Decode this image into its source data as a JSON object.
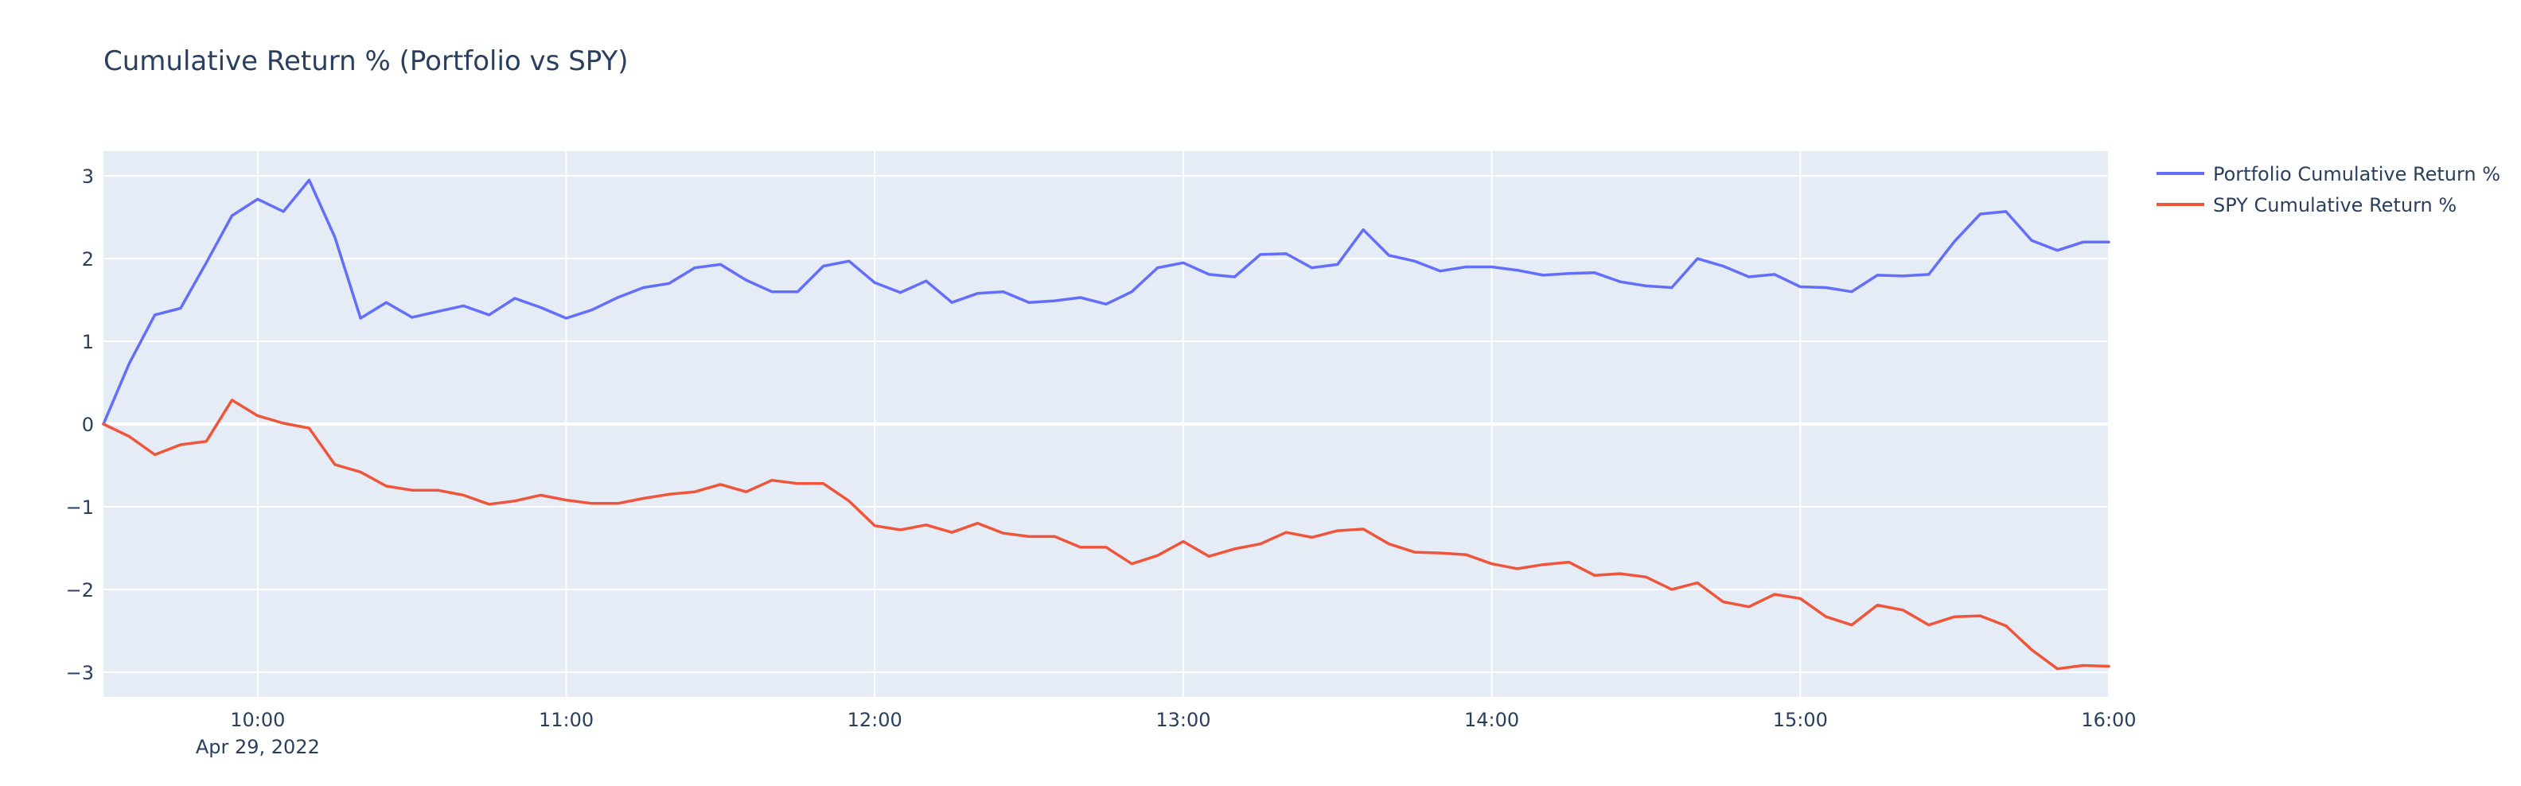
{
  "chart_data": {
    "type": "line",
    "title": "Cumulative Return % (Portfolio vs SPY)",
    "xlabel": "",
    "ylabel": "",
    "x_axis": {
      "type": "datetime",
      "range": [
        "09:30",
        "16:00"
      ],
      "ticks": [
        "10:00",
        "11:00",
        "12:00",
        "13:00",
        "14:00",
        "15:00",
        "16:00"
      ],
      "date_label": "Apr 29, 2022"
    },
    "y_axis": {
      "range": [
        -3.3,
        3.3
      ],
      "ticks": [
        3,
        2,
        1,
        0,
        -1,
        -2,
        -3
      ],
      "tick_labels": [
        "3",
        "2",
        "1",
        "0",
        "−1",
        "−2",
        "−3"
      ]
    },
    "grid": true,
    "plot_background": "#e5ecf6",
    "legend_position": "right",
    "series": [
      {
        "name": "Portfolio Cumulative Return %",
        "color": "#636efa",
        "x": [
          "09:30",
          "09:35",
          "09:40",
          "09:45",
          "09:50",
          "09:55",
          "10:00",
          "10:05",
          "10:10",
          "10:15",
          "10:20",
          "10:25",
          "10:30",
          "10:35",
          "10:40",
          "10:45",
          "10:50",
          "10:55",
          "11:00",
          "11:05",
          "11:10",
          "11:15",
          "11:20",
          "11:25",
          "11:30",
          "11:35",
          "11:40",
          "11:45",
          "11:50",
          "11:55",
          "12:00",
          "12:05",
          "12:10",
          "12:15",
          "12:20",
          "12:25",
          "12:30",
          "12:35",
          "12:40",
          "12:45",
          "12:50",
          "12:55",
          "13:00",
          "13:05",
          "13:10",
          "13:15",
          "13:20",
          "13:25",
          "13:30",
          "13:35",
          "13:40",
          "13:45",
          "13:50",
          "13:55",
          "14:00",
          "14:05",
          "14:10",
          "14:15",
          "14:20",
          "14:25",
          "14:30",
          "14:35",
          "14:40",
          "14:45",
          "14:50",
          "14:55",
          "15:00",
          "15:05",
          "15:10",
          "15:15",
          "15:20",
          "15:25",
          "15:30",
          "15:35",
          "15:40",
          "15:45",
          "15:50",
          "15:55",
          "16:00"
        ],
        "values": [
          0.0,
          0.73,
          1.32,
          1.4,
          1.95,
          2.52,
          2.72,
          2.57,
          2.95,
          2.26,
          1.28,
          1.47,
          1.29,
          1.36,
          1.43,
          1.32,
          1.52,
          1.41,
          1.28,
          1.38,
          1.53,
          1.65,
          1.7,
          1.89,
          1.93,
          1.74,
          1.6,
          1.6,
          1.91,
          1.97,
          1.71,
          1.59,
          1.73,
          1.47,
          1.58,
          1.6,
          1.47,
          1.49,
          1.53,
          1.45,
          1.6,
          1.89,
          1.95,
          1.81,
          1.78,
          2.05,
          2.06,
          1.89,
          1.93,
          2.35,
          2.04,
          1.97,
          1.85,
          1.9,
          1.9,
          1.86,
          1.8,
          1.82,
          1.83,
          1.72,
          1.67,
          1.65,
          2.0,
          1.91,
          1.78,
          1.81,
          1.66,
          1.65,
          1.6,
          1.8,
          1.79,
          1.81,
          2.21,
          2.54,
          2.57,
          2.22,
          2.1,
          2.2,
          2.2
        ]
      },
      {
        "name": "SPY Cumulative Return %",
        "color": "#ef553b",
        "x": [
          "09:30",
          "09:35",
          "09:40",
          "09:45",
          "09:50",
          "09:55",
          "10:00",
          "10:05",
          "10:10",
          "10:15",
          "10:20",
          "10:25",
          "10:30",
          "10:35",
          "10:40",
          "10:45",
          "10:50",
          "10:55",
          "11:00",
          "11:05",
          "11:10",
          "11:15",
          "11:20",
          "11:25",
          "11:30",
          "11:35",
          "11:40",
          "11:45",
          "11:50",
          "11:55",
          "12:00",
          "12:05",
          "12:10",
          "12:15",
          "12:20",
          "12:25",
          "12:30",
          "12:35",
          "12:40",
          "12:45",
          "12:50",
          "12:55",
          "13:00",
          "13:05",
          "13:10",
          "13:15",
          "13:20",
          "13:25",
          "13:30",
          "13:35",
          "13:40",
          "13:45",
          "13:50",
          "13:55",
          "14:00",
          "14:05",
          "14:10",
          "14:15",
          "14:20",
          "14:25",
          "14:30",
          "14:35",
          "14:40",
          "14:45",
          "14:50",
          "14:55",
          "15:00",
          "15:05",
          "15:10",
          "15:15",
          "15:20",
          "15:25",
          "15:30",
          "15:35",
          "15:40",
          "15:45",
          "15:50",
          "15:55",
          "16:00"
        ],
        "values": [
          0.0,
          -0.15,
          -0.37,
          -0.25,
          -0.21,
          0.29,
          0.1,
          0.01,
          -0.05,
          -0.49,
          -0.58,
          -0.75,
          -0.8,
          -0.8,
          -0.86,
          -0.97,
          -0.93,
          -0.86,
          -0.92,
          -0.96,
          -0.96,
          -0.9,
          -0.85,
          -0.82,
          -0.73,
          -0.82,
          -0.68,
          -0.72,
          -0.72,
          -0.93,
          -1.23,
          -1.28,
          -1.22,
          -1.31,
          -1.2,
          -1.32,
          -1.36,
          -1.36,
          -1.49,
          -1.49,
          -1.69,
          -1.59,
          -1.42,
          -1.6,
          -1.51,
          -1.45,
          -1.31,
          -1.37,
          -1.29,
          -1.27,
          -1.45,
          -1.55,
          -1.56,
          -1.58,
          -1.69,
          -1.75,
          -1.7,
          -1.67,
          -1.83,
          -1.81,
          -1.85,
          -2.0,
          -1.92,
          -2.15,
          -2.21,
          -2.06,
          -2.11,
          -2.33,
          -2.43,
          -2.19,
          -2.25,
          -2.43,
          -2.33,
          -2.32,
          -2.44,
          -2.73,
          -2.96,
          -2.92,
          -2.93
        ]
      }
    ]
  }
}
